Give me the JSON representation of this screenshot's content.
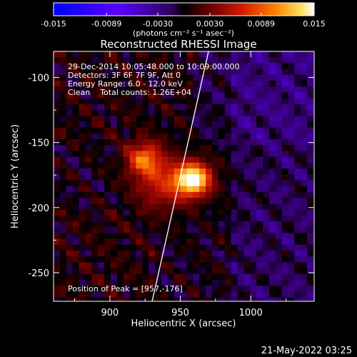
{
  "chart_data": {
    "type": "heatmap",
    "title": "Reconstructed RHESSI Image",
    "xlabel": "Heliocentric X (arcsec)",
    "ylabel": "Heliocentric Y (arcsec)",
    "xlim": [
      860,
      1045
    ],
    "ylim": [
      -272,
      -80
    ],
    "xticks": [
      900,
      950,
      1000
    ],
    "yticks": [
      -100,
      -150,
      -200,
      -250
    ],
    "colorbar": {
      "label": "(photons cm⁻² s⁻¹ asec⁻²)",
      "range": [
        -0.015,
        0.015
      ],
      "ticks": [
        "-0.015",
        "-0.0089",
        "-0.0030",
        "0.0030",
        "0.0089",
        "0.015"
      ]
    },
    "annotations": [
      "29-Dec-2014 10:05:48.000 to 10:09:00.000",
      "Detectors: 3F 6F 7F 9F, Att 0",
      "Energy Range: 6.0 - 12.0 keV",
      "Clean    Total counts: 1.26E+04"
    ],
    "peak_label": "Position of Peak = [957,-176]",
    "peak": {
      "x": 957,
      "y": -176,
      "value": 0.015
    },
    "secondary_sources": [
      {
        "x": 922,
        "y": -160,
        "value": 0.009
      },
      {
        "x": 935,
        "y": -180,
        "value": 0.006
      }
    ],
    "limb_line": [
      [
        930,
        -272
      ],
      [
        970,
        -80
      ]
    ],
    "grid": false
  },
  "footer": {
    "timestamp": "21-May-2022 03:25"
  }
}
